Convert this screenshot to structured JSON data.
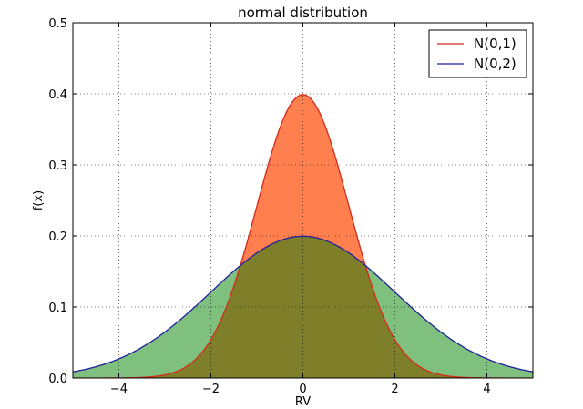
{
  "chart_data": {
    "type": "area",
    "title": "normal distribution",
    "xlabel": "RV",
    "ylabel": "f(x)",
    "xlim": [
      -5,
      5
    ],
    "ylim": [
      0,
      0.5
    ],
    "xticks": [
      -4,
      -2,
      0,
      2,
      4
    ],
    "xtick_labels": [
      "−4",
      "−2",
      "0",
      "2",
      "4"
    ],
    "yticks": [
      0.0,
      0.1,
      0.2,
      0.3,
      0.4,
      0.5
    ],
    "ytick_labels": [
      "0.0",
      "0.1",
      "0.2",
      "0.3",
      "0.4",
      "0.5"
    ],
    "grid": true,
    "legend_position": "top-right",
    "series": [
      {
        "name": "N(0,1)",
        "line_color": "#d62a1c",
        "fill_color": "#ff7f4f",
        "x": [
          -5,
          -4.5,
          -4,
          -3.5,
          -3,
          -2.5,
          -2,
          -1.5,
          -1,
          -0.5,
          0,
          0.5,
          1,
          1.5,
          2,
          2.5,
          3,
          3.5,
          4,
          4.5,
          5
        ],
        "values": [
          1.5e-06,
          1.6e-05,
          0.000134,
          0.000873,
          0.004432,
          0.017528,
          0.053991,
          0.129518,
          0.241971,
          0.352065,
          0.398942,
          0.352065,
          0.241971,
          0.129518,
          0.053991,
          0.017528,
          0.004432,
          0.000873,
          0.000134,
          1.6e-05,
          1.5e-06
        ]
      },
      {
        "name": "N(0,2)",
        "line_color": "#1f1f9e",
        "fill_color": "#7fc07f",
        "x": [
          -5,
          -4.5,
          -4,
          -3.5,
          -3,
          -2.5,
          -2,
          -1.5,
          -1,
          -0.5,
          0,
          0.5,
          1,
          1.5,
          2,
          2.5,
          3,
          3.5,
          4,
          4.5,
          5
        ],
        "values": [
          0.008764,
          0.015863,
          0.026995,
          0.043172,
          0.064759,
          0.091325,
          0.120985,
          0.150569,
          0.176033,
          0.193334,
          0.199471,
          0.193334,
          0.176033,
          0.150569,
          0.120985,
          0.091325,
          0.064759,
          0.043172,
          0.026995,
          0.015863,
          0.008764
        ]
      }
    ],
    "overlap_fill_color": "#7f7f2a"
  }
}
